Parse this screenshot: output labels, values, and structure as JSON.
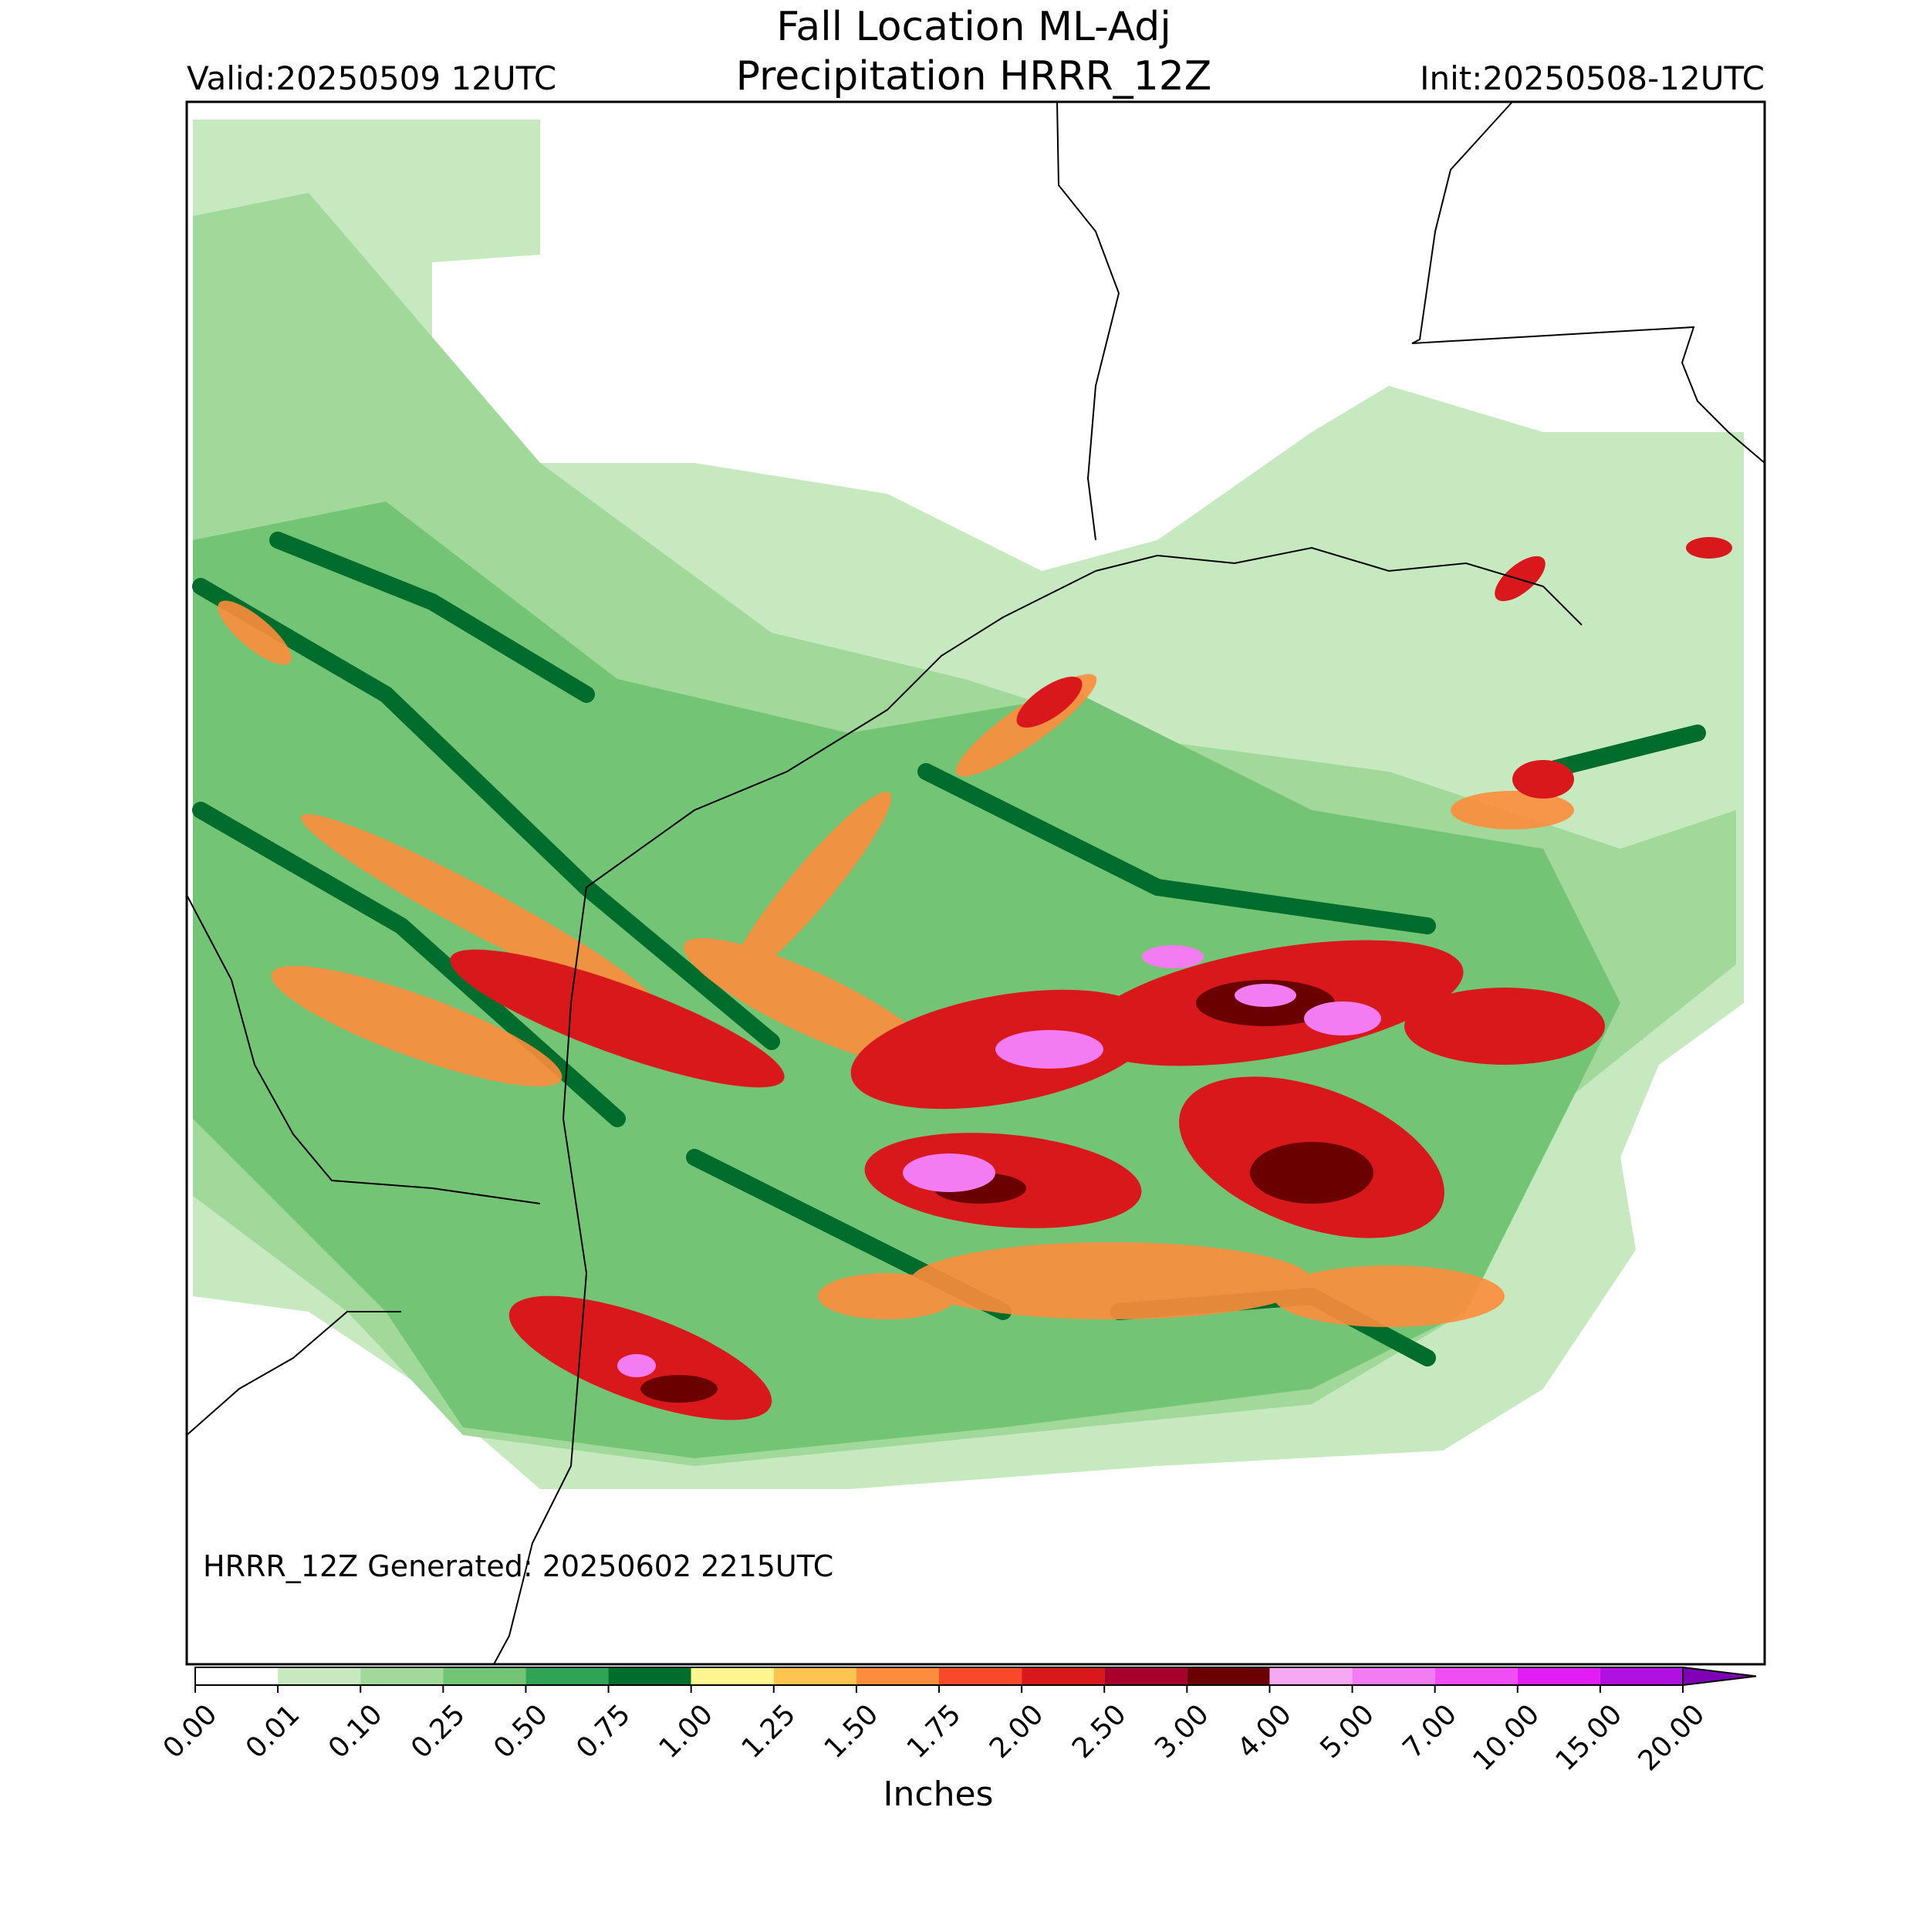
{
  "header": {
    "title": "Fall Location ML-Adj",
    "subtitle": "Precipitation HRRR_12Z",
    "valid": "Valid:20250509 12UTC",
    "init": "Init:20250508-12UTC"
  },
  "map": {
    "annotation": "HRRR_12Z Generated: 20250602 2215UTC"
  },
  "colorbar": {
    "label": "Inches",
    "ticks": [
      {
        "value": 0,
        "label": "0.00"
      },
      {
        "value": 0.01,
        "label": "0.01"
      },
      {
        "value": 0.1,
        "label": "0.10"
      },
      {
        "value": 0.25,
        "label": "0.25"
      },
      {
        "value": 0.5,
        "label": "0.50"
      },
      {
        "value": 0.75,
        "label": "0.75"
      },
      {
        "value": 1,
        "label": "1.00"
      },
      {
        "value": 1.25,
        "label": "1.25"
      },
      {
        "value": 1.5,
        "label": "1.50"
      },
      {
        "value": 1.75,
        "label": "1.75"
      },
      {
        "value": 2,
        "label": "2.00"
      },
      {
        "value": 2.5,
        "label": "2.50"
      },
      {
        "value": 3,
        "label": "3.00"
      },
      {
        "value": 4,
        "label": "4.00"
      },
      {
        "value": 5,
        "label": "5.00"
      },
      {
        "value": 7,
        "label": "7.00"
      },
      {
        "value": 10,
        "label": "10.00"
      },
      {
        "value": 15,
        "label": "15.00"
      },
      {
        "value": 20,
        "label": "20.00"
      }
    ],
    "colors": [
      "#ffffff",
      "#c7e9c0",
      "#a1d99b",
      "#74c476",
      "#31a354",
      "#006d2c",
      "#fff68f",
      "#fdc44f",
      "#fd8d3c",
      "#f84a2a",
      "#d9181c",
      "#a6002b",
      "#6a0000",
      "#f7a8f2",
      "#f47cf2",
      "#f04ef2",
      "#e21cf4",
      "#b010e0"
    ],
    "extend_color": "#8000b8"
  }
}
